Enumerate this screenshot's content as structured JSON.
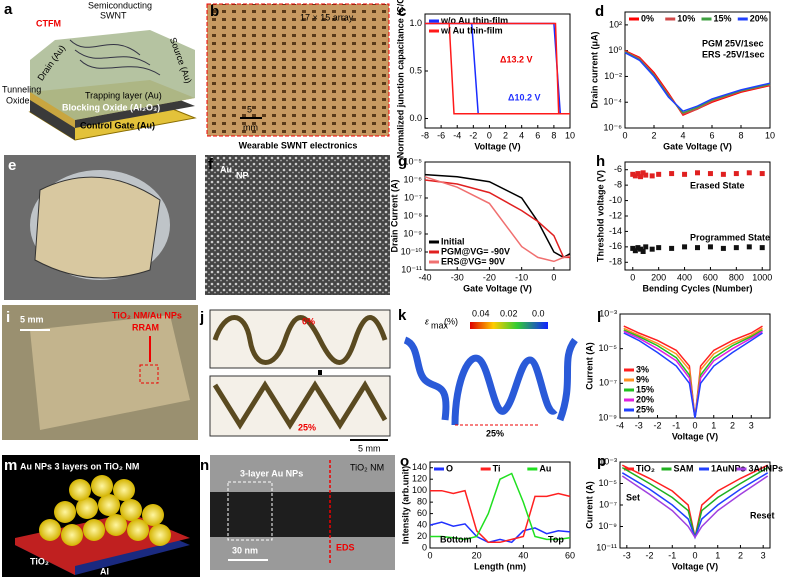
{
  "panels": [
    {
      "label": "a",
      "texts": [
        "CTFM",
        "Semiconducting",
        "SWNT",
        "Tunneling",
        "Oxide",
        "Drain (Au)",
        "Source (Au)",
        "Trapping layer (Au)",
        "Blocking Oxide (Al₂O₃)",
        "Control Gate (Au)"
      ]
    },
    {
      "label": "b",
      "texts": [
        "17 × 15 array",
        "5",
        "mm",
        "Wearable SWNT electronics"
      ]
    },
    {
      "label": "e"
    },
    {
      "label": "f",
      "texts": [
        "Au",
        "NP"
      ]
    },
    {
      "label": "i",
      "texts": [
        "5 mm",
        "TiO₂ NM/Au NPs",
        "RRAM"
      ]
    },
    {
      "label": "j",
      "texts": [
        "0%",
        "25%",
        "5 mm"
      ]
    },
    {
      "label": "k",
      "texts": [
        "ε",
        "max",
        "(%)",
        "0.04",
        "0.02",
        "0.0",
        "25%"
      ]
    },
    {
      "label": "m",
      "texts": [
        "Au NPs 3 layers on TiO₂ NM",
        "TiO₂",
        "Al"
      ]
    },
    {
      "label": "n",
      "texts": [
        "3-layer Au NPs",
        "TiO₂ NM",
        "EDS",
        "30 nm"
      ]
    }
  ],
  "chart_data": [
    {
      "type": "line",
      "label": "c",
      "xlabel": "Voltage (V)",
      "ylabel": "Normalized junction capacitance (C/Cox)",
      "xlim": [
        -8,
        10
      ],
      "ylim": [
        -0.1,
        1.1
      ],
      "xticks": [
        -8,
        -6,
        -4,
        -2,
        0,
        2,
        4,
        6,
        8,
        10
      ],
      "yticks": [
        {
          "value": 0,
          "label": "0.0"
        },
        {
          "value": 0.5,
          "label": "0.5"
        },
        {
          "value": 1,
          "label": "1.0"
        }
      ],
      "legend": "upper left",
      "annotations": [
        "Δ13.2 V",
        "Δ10.2 V"
      ],
      "series": [
        {
          "name": "w/o Au thin-film",
          "color": "#1a2cff",
          "x": [
            -8,
            8,
            8.8,
            10,
            -1.4,
            -2.2,
            -8
          ],
          "values": [
            1,
            1,
            0.05,
            0.05,
            0.05,
            1,
            1
          ]
        },
        {
          "name": "w/ Au thin-film",
          "color": "#ff1a1a",
          "x": [
            -8,
            8.2,
            8.6,
            10,
            -4.4,
            -5,
            -8
          ],
          "values": [
            1,
            1,
            0.05,
            0.05,
            0.05,
            1,
            1
          ]
        }
      ]
    },
    {
      "type": "line",
      "label": "d",
      "xlabel": "Gate Voltage (V)",
      "ylabel": "Drain current (μA)",
      "ylog": true,
      "xlim": [
        0,
        10
      ],
      "ylim": [
        1e-06,
        1000
      ],
      "xticks": [
        0,
        2,
        4,
        6,
        8,
        10
      ],
      "yticks": [
        {
          "value": 100,
          "label": "10²"
        },
        {
          "value": 1,
          "label": "10⁰"
        },
        {
          "value": 0.01,
          "label": "10⁻²"
        },
        {
          "value": 0.0001,
          "label": "10⁻⁴"
        },
        {
          "value": 1e-06,
          "label": "10⁻⁶"
        }
      ],
      "legend": "top",
      "annotations": [
        "PGM 25V/1sec",
        "ERS -25V/1sec"
      ],
      "series": [
        {
          "name": "0%",
          "color": "#ff0000",
          "x": [
            0,
            1,
            2,
            3,
            4,
            5,
            6,
            8,
            10
          ],
          "values": [
            1,
            0.3,
            0.02,
            0.0005,
            1e-05,
            3e-05,
            0.0001,
            0.0006,
            0.002
          ]
        },
        {
          "name": "10%",
          "color": "#d04848",
          "x": [
            0,
            1,
            2,
            3,
            4,
            5,
            6,
            8,
            10
          ],
          "values": [
            0.9,
            0.25,
            0.015,
            0.0004,
            1.2e-05,
            3e-05,
            0.00012,
            0.0007,
            0.0022
          ]
        },
        {
          "name": "15%",
          "color": "#3fa040",
          "x": [
            0,
            1,
            2,
            3,
            4,
            5,
            6,
            8,
            10
          ],
          "values": [
            0.8,
            0.2,
            0.012,
            0.0003,
            1.5e-05,
            4e-05,
            0.00015,
            0.0008,
            0.0025
          ]
        },
        {
          "name": "20%",
          "color": "#2040ff",
          "x": [
            0,
            1,
            2,
            3,
            4,
            5,
            6,
            8,
            10
          ],
          "values": [
            0.7,
            0.18,
            0.01,
            0.00025,
            2e-05,
            5e-05,
            0.00018,
            0.0009,
            0.003
          ]
        }
      ]
    },
    {
      "type": "line",
      "label": "g",
      "xlabel": "Gate Voltage (V)",
      "ylabel": "Drain Current (A)",
      "ylog": true,
      "xlim": [
        -40,
        5
      ],
      "ylim": [
        1e-11,
        1e-05
      ],
      "xticks": [
        -40,
        -30,
        -20,
        -10,
        0
      ],
      "yticks": [
        {
          "value": 1e-05,
          "label": "10⁻⁵"
        },
        {
          "value": 1e-06,
          "label": "10⁻⁶"
        },
        {
          "value": 1e-07,
          "label": "10⁻⁷"
        },
        {
          "value": 1e-08,
          "label": "10⁻⁸"
        },
        {
          "value": 1e-09,
          "label": "10⁻⁹"
        },
        {
          "value": 1e-10,
          "label": "10⁻¹⁰"
        },
        {
          "value": 1e-11,
          "label": "10⁻¹¹"
        }
      ],
      "legend": "lower left",
      "series": [
        {
          "name": "Initial",
          "color": "#000000",
          "x": [
            -40,
            -30,
            -20,
            -10,
            -5,
            0,
            3,
            5
          ],
          "values": [
            2e-06,
            1.5e-06,
            8e-07,
            1e-07,
            5e-09,
            1e-10,
            5e-11,
            8e-11
          ]
        },
        {
          "name": "PGM@VG= -90V",
          "color": "#e02020",
          "x": [
            -40,
            -30,
            -20,
            -10,
            -5,
            0,
            3,
            5
          ],
          "values": [
            1e-06,
            6e-07,
            2e-07,
            2e-08,
            5e-09,
            8e-10,
            5e-11,
            5e-11
          ]
        },
        {
          "name": "ERS@VG= 90V",
          "color": "#f07070",
          "x": [
            -40,
            -30,
            -20,
            -10,
            -5,
            0,
            3,
            5
          ],
          "values": [
            1.5e-06,
            4e-07,
            5e-08,
            2e-10,
            5e-11,
            3e-11,
            5e-11,
            6e-11
          ]
        }
      ]
    },
    {
      "type": "scatter",
      "label": "h",
      "xlabel": "Bending Cycles (Number)",
      "ylabel": "Threshold voltage (V)",
      "xlim": [
        -60,
        1060
      ],
      "ylim": [
        -19,
        -5
      ],
      "xticks": [
        0,
        200,
        400,
        600,
        800,
        1000
      ],
      "yticks": [
        -6,
        -8,
        -10,
        -12,
        -14,
        -16,
        -18
      ],
      "annotations": [
        "Erased State",
        "Programmed State"
      ],
      "series": [
        {
          "color": "#e02020",
          "x": [
            0,
            20,
            40,
            60,
            80,
            100,
            150,
            200,
            300,
            400,
            500,
            600,
            700,
            800,
            900,
            1000
          ],
          "values": [
            -6.6,
            -6.8,
            -6.5,
            -6.9,
            -6.4,
            -6.7,
            -6.8,
            -6.6,
            -6.5,
            -6.6,
            -6.4,
            -6.5,
            -6.6,
            -6.5,
            -6.4,
            -6.5
          ]
        },
        {
          "color": "#111111",
          "x": [
            0,
            20,
            40,
            60,
            80,
            100,
            150,
            200,
            300,
            400,
            500,
            600,
            700,
            800,
            900,
            1000
          ],
          "values": [
            -16.2,
            -16.5,
            -16.1,
            -16.3,
            -16.6,
            -16,
            -16.3,
            -16.1,
            -16.2,
            -16,
            -16.1,
            -16,
            -16.2,
            -16.1,
            -16,
            -16.1
          ]
        }
      ]
    },
    {
      "type": "line",
      "label": "l",
      "xlabel": "Voltage (V)",
      "ylabel": "Current (A)",
      "ylog": true,
      "xlim": [
        -4,
        4
      ],
      "ylim": [
        1e-09,
        0.001
      ],
      "xticks": [
        -4,
        -3,
        -2,
        -1,
        0,
        1,
        2,
        3
      ],
      "yticks": [
        {
          "value": 0.001,
          "label": "10⁻³"
        },
        {
          "value": 1e-05,
          "label": "10⁻⁵"
        },
        {
          "value": 1e-07,
          "label": "10⁻⁷"
        },
        {
          "value": 1e-09,
          "label": "10⁻⁹"
        }
      ],
      "legend": "lower left",
      "series": [
        {
          "name": "3%",
          "color": "#ff2020",
          "x": [
            -3.8,
            -3,
            -2,
            -1,
            -0.3,
            0,
            0.3,
            1,
            2,
            3,
            3.6
          ],
          "values": [
            0.0002,
            8e-05,
            3e-05,
            8e-06,
            1e-06,
            1e-09,
            1e-06,
            8e-06,
            3e-05,
            8e-05,
            0.0002
          ]
        },
        {
          "name": "9%",
          "color": "#ff9020",
          "x": [
            -3.8,
            -3,
            -2,
            -1,
            -0.3,
            0,
            0.3,
            1,
            2,
            3,
            3.6
          ],
          "values": [
            0.00015,
            6e-05,
            2e-05,
            5e-06,
            6e-07,
            1e-09,
            6e-07,
            5e-06,
            2e-05,
            6e-05,
            0.00015
          ]
        },
        {
          "name": "15%",
          "color": "#20c020",
          "x": [
            -3.8,
            -3,
            -2,
            -1,
            -0.3,
            0,
            0.3,
            1,
            2,
            3,
            3.6
          ],
          "values": [
            0.00012,
            5e-05,
            1.5e-05,
            3e-06,
            3e-07,
            1e-09,
            3e-07,
            3e-06,
            1.5e-05,
            5e-05,
            0.00012
          ]
        },
        {
          "name": "20%",
          "color": "#e020e0",
          "x": [
            -3.8,
            -3,
            -2,
            -1,
            -0.3,
            0,
            0.3,
            1,
            2,
            3,
            3.6
          ],
          "values": [
            0.0001,
            4e-05,
            1e-05,
            2e-06,
            2e-07,
            1e-09,
            2e-07,
            2e-06,
            1e-05,
            4e-05,
            0.0001
          ]
        },
        {
          "name": "25%",
          "color": "#2040ff",
          "x": [
            -3.8,
            -3,
            -2,
            -1,
            -0.3,
            0,
            0.3,
            1,
            2,
            3,
            3.6
          ],
          "values": [
            8e-05,
            3e-05,
            6e-06,
            1e-06,
            1e-07,
            1e-09,
            1e-07,
            1e-06,
            6e-06,
            3e-05,
            8e-05
          ]
        }
      ]
    },
    {
      "type": "line",
      "label": "o",
      "xlabel": "Length (nm)",
      "ylabel": "Intensity (arb.unit)",
      "xlim": [
        0,
        60
      ],
      "ylim": [
        0,
        150
      ],
      "xticks": [
        0,
        20,
        40,
        60
      ],
      "yticks": [
        0,
        20,
        40,
        60,
        80,
        100,
        120,
        140
      ],
      "legend": "top",
      "annotations": [
        "Bottom",
        "Top"
      ],
      "series": [
        {
          "name": "O",
          "color": "#2030ff",
          "x": [
            0,
            5,
            10,
            15,
            20,
            25,
            30,
            35,
            40,
            45,
            50,
            55,
            60
          ],
          "values": [
            40,
            45,
            38,
            42,
            20,
            10,
            15,
            10,
            30,
            35,
            25,
            30,
            28
          ]
        },
        {
          "name": "Ti",
          "color": "#ff2020",
          "x": [
            0,
            5,
            10,
            15,
            20,
            25,
            30,
            35,
            40,
            45,
            50,
            55,
            60
          ],
          "values": [
            100,
            100,
            95,
            100,
            30,
            10,
            10,
            15,
            20,
            90,
            90,
            95,
            90
          ]
        },
        {
          "name": "Au",
          "color": "#20e020",
          "x": [
            0,
            5,
            10,
            15,
            20,
            25,
            30,
            35,
            40,
            45,
            50,
            55,
            60
          ],
          "values": [
            20,
            20,
            18,
            15,
            20,
            60,
            120,
            130,
            80,
            20,
            15,
            15,
            18
          ]
        }
      ]
    },
    {
      "type": "line",
      "label": "p",
      "xlabel": "Voltage (V)",
      "ylabel": "Current (A)",
      "ylog": true,
      "xlim": [
        -3.3,
        3.3
      ],
      "ylim": [
        1e-11,
        0.001
      ],
      "xticks": [
        -3,
        -2,
        -1,
        0,
        1,
        2,
        3
      ],
      "yticks": [
        {
          "value": 0.001,
          "label": "10⁻³"
        },
        {
          "value": 1e-05,
          "label": "10⁻⁵"
        },
        {
          "value": 1e-07,
          "label": "10⁻⁷"
        },
        {
          "value": 1e-09,
          "label": "10⁻⁹"
        },
        {
          "value": 1e-11,
          "label": "10⁻¹¹"
        }
      ],
      "legend": "top",
      "annotations": [
        "Set",
        "Reset"
      ],
      "series": [
        {
          "name": "TiO₂",
          "color": "#ff2020",
          "x": [
            -3.2,
            -2,
            -1,
            -0.3,
            0,
            0.3,
            1,
            2,
            3.2
          ],
          "values": [
            0.0005,
            3e-05,
            2e-06,
            1e-07,
            1e-10,
            1e-07,
            2e-06,
            3e-05,
            0.0005
          ]
        },
        {
          "name": "SAM",
          "color": "#20b020",
          "x": [
            -3.2,
            -2,
            -1,
            -0.3,
            0,
            0.3,
            1,
            2,
            3.2
          ],
          "values": [
            0.0003,
            1e-05,
            5e-07,
            3e-08,
            1e-10,
            3e-08,
            5e-07,
            1e-05,
            0.0003
          ]
        },
        {
          "name": "1AuNPs",
          "color": "#2040ff",
          "x": [
            -3.2,
            -2,
            -1,
            -0.3,
            0,
            0.3,
            1,
            2,
            3.2
          ],
          "values": [
            0.0001,
            3e-06,
            1e-07,
            5e-09,
            1e-10,
            5e-09,
            1e-07,
            3e-06,
            0.0001
          ]
        },
        {
          "name": "3AuNPs",
          "color": "#a040e0",
          "x": [
            -3.2,
            -2,
            -1,
            -0.3,
            0,
            0.3,
            1,
            2,
            3.2
          ],
          "values": [
            5e-05,
            1e-06,
            3e-08,
            1e-09,
            1e-10,
            1e-09,
            3e-08,
            1e-06,
            5e-05
          ]
        }
      ]
    }
  ]
}
